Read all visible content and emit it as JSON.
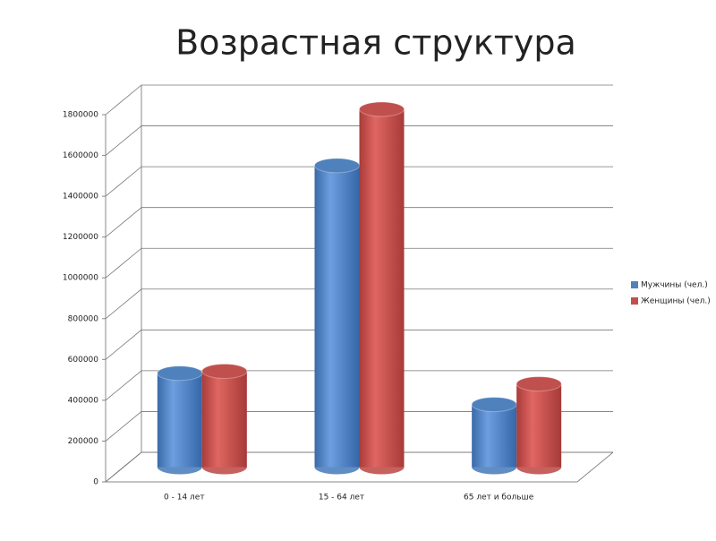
{
  "chart_data": {
    "type": "bar3d",
    "title": "Возрастная структура",
    "categories": [
      "0  - 14 лет",
      "15 - 64 лет",
      "65 лет и больше"
    ],
    "series": [
      {
        "name": "Мужчины (чел.)",
        "color": "#4f81bd",
        "values": [
          460000,
          1478000,
          307000
        ]
      },
      {
        "name": "Женщины (чел.)",
        "color": "#c0504d",
        "values": [
          470000,
          1754000,
          408000
        ]
      }
    ],
    "ylim": [
      0,
      1800000
    ],
    "yticks": [
      0,
      200000,
      400000,
      600000,
      800000,
      1000000,
      1200000,
      1400000,
      1600000,
      1800000
    ],
    "grid": true,
    "legend": "right"
  }
}
